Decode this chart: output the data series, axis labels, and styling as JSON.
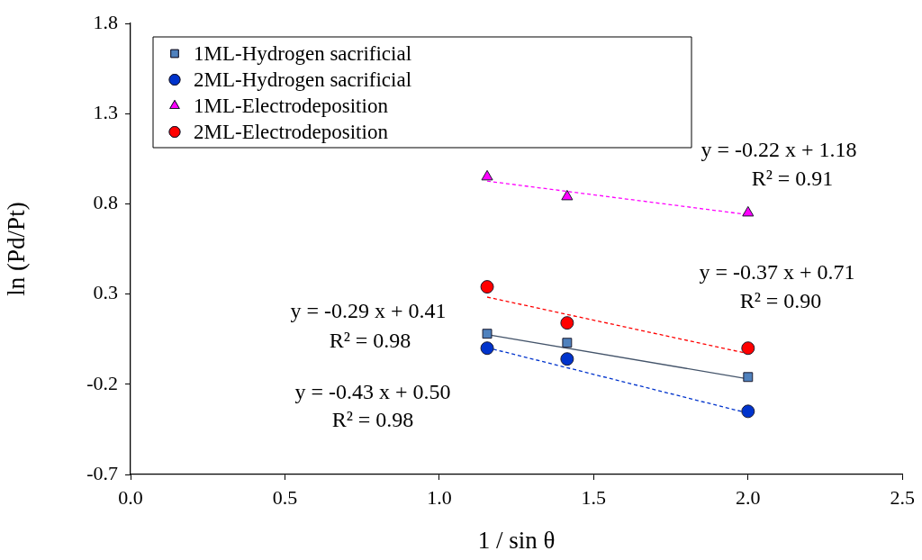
{
  "chart_data": {
    "type": "scatter",
    "xlabel": "1 / sin θ",
    "ylabel": "ln (Pd/Pt)",
    "xlim": [
      0,
      2.5
    ],
    "xticks": [
      {
        "value": 0,
        "label": "0.0"
      },
      {
        "value": 0.5,
        "label": "0.5"
      },
      {
        "value": 1,
        "label": "1.0"
      },
      {
        "value": 1.5,
        "label": "1.5"
      },
      {
        "value": 2,
        "label": "2.0"
      },
      {
        "value": 2.5,
        "label": "2.5"
      }
    ],
    "ylim": [
      -0.7,
      1.8
    ],
    "yticks": [
      -0.7,
      -0.2,
      0.3,
      0.8,
      1.3,
      1.8
    ],
    "grid": false,
    "legend": "top left",
    "series": [
      {
        "name": "1ML-Hydrogen sacrificial",
        "marker": "square",
        "color": "#4f81bd",
        "x": [
          1.155,
          1.414,
          2.0
        ],
        "values": [
          0.08,
          0.03,
          -0.16
        ]
      },
      {
        "name": "2ML-Hydrogen sacrificial",
        "marker": "circle",
        "color": "#0033cc",
        "x": [
          1.155,
          1.414,
          2.0
        ],
        "values": [
          0.0,
          -0.06,
          -0.35
        ]
      },
      {
        "name": "1ML-Electrodeposition",
        "marker": "triangle",
        "color": "#ff00ff",
        "x": [
          1.155,
          1.414,
          2.0
        ],
        "values": [
          0.95,
          0.84,
          0.75
        ]
      },
      {
        "name": "2ML-Electrodeposition",
        "marker": "circle",
        "color": "#ff0000",
        "x": [
          1.155,
          1.414,
          2.0
        ],
        "values": [
          0.34,
          0.14,
          0.0
        ]
      },
      {
        "type": "line",
        "line_style": "solid",
        "color": "#44546a",
        "x": [
          1.155,
          2.0
        ],
        "values": [
          0.075,
          -0.17
        ]
      },
      {
        "type": "line",
        "line_style": "dashed",
        "color": "#0033cc",
        "x": [
          1.155,
          2.0
        ],
        "values": [
          0.003,
          -0.36
        ]
      },
      {
        "type": "line",
        "line_style": "dashed",
        "color": "#ff00ff",
        "x": [
          1.155,
          2.0
        ],
        "values": [
          0.926,
          0.74
        ]
      },
      {
        "type": "line",
        "line_style": "dashed",
        "color": "#ff0000",
        "x": [
          1.155,
          2.0
        ],
        "values": [
          0.283,
          -0.03
        ]
      }
    ],
    "annotations": [
      "y = -0.22 x + 1.18",
      "R² = 0.91",
      "y = -0.37 x + 0.71",
      "R² = 0.90",
      "y = -0.29 x + 0.41",
      "R² = 0.98",
      "y = -0.43 x + 0.50",
      "R² = 0.98"
    ]
  }
}
